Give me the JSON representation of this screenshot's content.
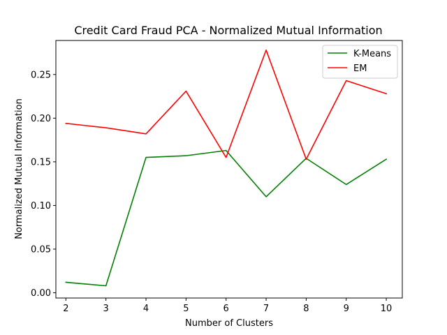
{
  "chart_data": {
    "type": "line",
    "title": "Credit Card Fraud PCA - Normalized Mutual Information",
    "xlabel": "Number of Clusters",
    "ylabel": "Normalized Mutual Information",
    "x": [
      2,
      3,
      4,
      5,
      6,
      7,
      8,
      9,
      10
    ],
    "xlim": [
      1.75,
      10.4
    ],
    "ylim": [
      -0.006,
      0.289
    ],
    "x_ticks": [
      "2",
      "3",
      "4",
      "5",
      "6",
      "7",
      "8",
      "9",
      "10"
    ],
    "y_ticks": [
      "0.00",
      "0.05",
      "0.10",
      "0.15",
      "0.20",
      "0.25"
    ],
    "legend_position": "top-right",
    "grid": false,
    "series": [
      {
        "name": "K-Means",
        "color": "#008000",
        "values": [
          0.012,
          0.008,
          0.155,
          0.157,
          0.163,
          0.11,
          0.154,
          0.124,
          0.153
        ]
      },
      {
        "name": "EM",
        "color": "#ff0000",
        "values": [
          0.194,
          0.189,
          0.182,
          0.231,
          0.155,
          0.278,
          0.153,
          0.243,
          0.228
        ]
      }
    ]
  }
}
